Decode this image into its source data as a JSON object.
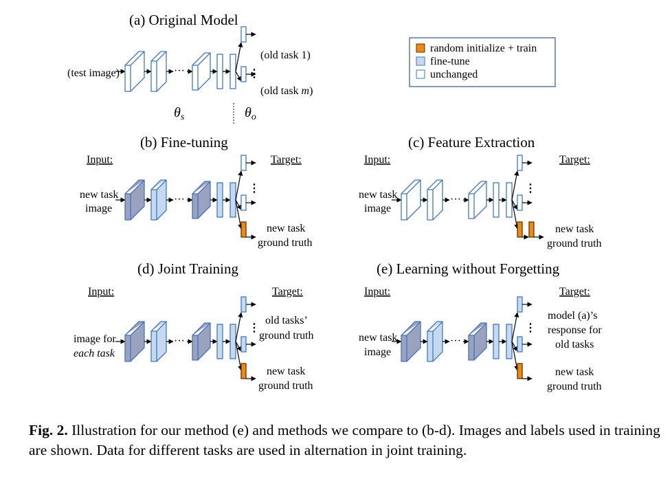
{
  "colors": {
    "unchanged_fill": "#ffffff",
    "unchanged_stroke": "#3f78c0",
    "finetune_fill": "#c5d9f1",
    "finetune_stroke": "#3f78c0",
    "dark_fill": "#9aa3bd",
    "dark_stroke": "#4472c4",
    "random_fill": "#ee8a12",
    "random_stroke": "#5b3500",
    "legend_border": "#2e5597"
  },
  "legend": {
    "items": [
      {
        "label": "random initialize + train",
        "kind": "random"
      },
      {
        "label": "fine-tune",
        "kind": "finetune"
      },
      {
        "label": "unchanged",
        "kind": "unchanged"
      }
    ]
  },
  "panels": {
    "a": {
      "title": "(a) Original Model",
      "input": "(test image)",
      "outputs": [
        "(old task 1)",
        "(old task m)"
      ],
      "theta_s": "θs",
      "theta_o": "θo"
    },
    "b": {
      "title": "(b) Fine-tuning",
      "input_header": "Input:",
      "target_header": "Target:",
      "input_text": [
        "new task",
        "image"
      ],
      "target_new": [
        "new task",
        "ground truth"
      ]
    },
    "c": {
      "title": "(c) Feature Extraction",
      "input_header": "Input:",
      "target_header": "Target:",
      "input_text": [
        "new task",
        "image"
      ],
      "target_new": [
        "new task",
        "ground truth"
      ]
    },
    "d": {
      "title": "(d) Joint Training",
      "input_header": "Input:",
      "target_header": "Target:",
      "input_text": [
        "image for",
        "each task"
      ],
      "target_old": [
        "old tasks’",
        "ground truth"
      ],
      "target_new": [
        "new task",
        "ground truth"
      ]
    },
    "e": {
      "title": "(e) Learning without Forgetting",
      "input_header": "Input:",
      "target_header": "Target:",
      "input_text": [
        "new task",
        "image"
      ],
      "target_old": [
        "model (a)’s",
        "response for",
        "old tasks"
      ],
      "target_new": [
        "new task",
        "ground truth"
      ]
    }
  },
  "caption": {
    "label": "Fig. 2.",
    "text": "Illustration for our method (e) and methods we compare to (b-d). Images and labels used in training are shown. Data for different tasks are used in alternation in joint training."
  }
}
